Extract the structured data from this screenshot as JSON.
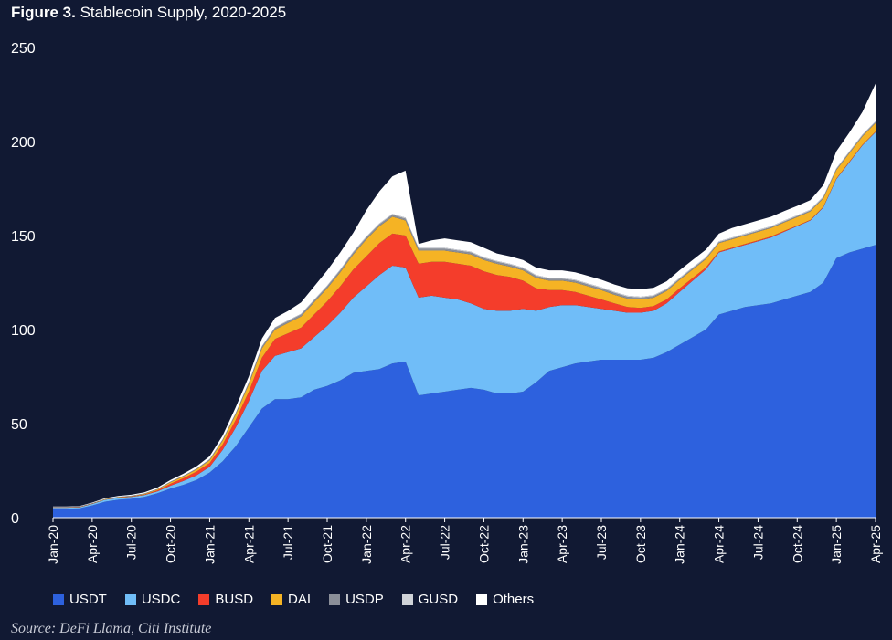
{
  "title": {
    "bold": "Figure 3.",
    "text": "Stablecoin Supply, 2020-2025"
  },
  "source": "Source: DeFi Llama, Citi Institute",
  "colors": {
    "background": "#111933",
    "USDT": "#2d61de",
    "USDC": "#70bdf8",
    "BUSD": "#f43d2b",
    "DAI": "#f5b324",
    "USDP": "#8b8f99",
    "GUSD": "#d0d3d8",
    "Others": "#ffffff"
  },
  "chart_data": {
    "type": "area",
    "stacked": true,
    "title": "Stablecoin Supply, 2020-2025",
    "ylim": [
      0,
      250
    ],
    "yticks": [
      0,
      50,
      100,
      150,
      200,
      250
    ],
    "xticks": [
      "Jan-20",
      "Apr-20",
      "Jul-20",
      "Oct-20",
      "Jan-21",
      "Apr-21",
      "Jul-21",
      "Oct-21",
      "Jan-22",
      "Apr-22",
      "Jul-22",
      "Oct-22",
      "Jan-23",
      "Apr-23",
      "Jul-23",
      "Oct-23",
      "Jan-24",
      "Apr-24",
      "Jul-24",
      "Oct-24",
      "Jan-25",
      "Apr-25"
    ],
    "legend_position": "bottom",
    "x": [
      "Jan-20",
      "Feb-20",
      "Mar-20",
      "Apr-20",
      "May-20",
      "Jun-20",
      "Jul-20",
      "Aug-20",
      "Sep-20",
      "Oct-20",
      "Nov-20",
      "Dec-20",
      "Jan-21",
      "Feb-21",
      "Mar-21",
      "Apr-21",
      "May-21",
      "Jun-21",
      "Jul-21",
      "Aug-21",
      "Sep-21",
      "Oct-21",
      "Nov-21",
      "Dec-21",
      "Jan-22",
      "Feb-22",
      "Mar-22",
      "Apr-22",
      "May-22",
      "Jun-22",
      "Jul-22",
      "Aug-22",
      "Sep-22",
      "Oct-22",
      "Nov-22",
      "Dec-22",
      "Jan-23",
      "Feb-23",
      "Mar-23",
      "Apr-23",
      "May-23",
      "Jun-23",
      "Jul-23",
      "Aug-23",
      "Sep-23",
      "Oct-23",
      "Nov-23",
      "Dec-23",
      "Jan-24",
      "Feb-24",
      "Mar-24",
      "Apr-24",
      "May-24",
      "Jun-24",
      "Jul-24",
      "Aug-24",
      "Sep-24",
      "Oct-24",
      "Nov-24",
      "Dec-24",
      "Jan-25",
      "Feb-25",
      "Mar-25",
      "Apr-25"
    ],
    "series": [
      {
        "name": "USDT",
        "values": [
          4.8,
          4.8,
          4.9,
          6.5,
          8.5,
          9.5,
          10,
          11,
          13,
          15.5,
          17.5,
          20,
          24,
          30,
          38,
          48,
          58,
          63,
          63,
          64,
          68,
          70,
          73,
          77,
          78,
          79,
          82,
          83,
          65,
          66,
          67,
          68,
          69,
          68,
          66,
          66,
          67,
          72,
          78,
          80,
          82,
          83,
          84,
          84,
          84,
          84,
          85,
          88,
          92,
          96,
          100,
          108,
          110,
          112,
          113,
          114,
          116,
          118,
          120,
          125,
          138,
          141,
          143,
          145
        ]
      },
      {
        "name": "USDC",
        "values": [
          0.5,
          0.5,
          0.6,
          0.8,
          1,
          1,
          1,
          1,
          1,
          1.5,
          2,
          2.5,
          3,
          6,
          10,
          14,
          20,
          23,
          25,
          26,
          28,
          32,
          36,
          40,
          45,
          50,
          52,
          50,
          52,
          52,
          50,
          48,
          45,
          43,
          44,
          44,
          44,
          38,
          34,
          33,
          31,
          29,
          27,
          26,
          25,
          25,
          25,
          26,
          28,
          30,
          32,
          33,
          33,
          33,
          34,
          35,
          36,
          37,
          38,
          40,
          42,
          48,
          55,
          60
        ]
      },
      {
        "name": "BUSD",
        "values": [
          0.1,
          0.1,
          0.1,
          0.1,
          0.1,
          0.2,
          0.2,
          0.3,
          0.5,
          1,
          1.5,
          2,
          2,
          3,
          4,
          5,
          7,
          9,
          10,
          11,
          12,
          13,
          14,
          15,
          16,
          17,
          17,
          17,
          18,
          18,
          19,
          19,
          20,
          20,
          19,
          18,
          15,
          12,
          9,
          8,
          7,
          6,
          5,
          4,
          3,
          2.5,
          2.5,
          2,
          2,
          1.5,
          1,
          0.5,
          0.5,
          0.5,
          0.5,
          0.5,
          0.5,
          0.3,
          0.3,
          0.3,
          0.3,
          0.3,
          0.3,
          0.3
        ]
      },
      {
        "name": "DAI",
        "values": [
          0.1,
          0.1,
          0.1,
          0.1,
          0.2,
          0.2,
          0.2,
          0.3,
          0.5,
          0.8,
          1,
          1.2,
          1.5,
          2,
          3,
          4,
          5,
          5,
          5.5,
          6,
          6.5,
          7,
          7.5,
          8,
          9,
          9,
          9,
          8,
          7,
          6,
          6,
          6,
          6,
          6,
          6,
          5.5,
          5.5,
          5.5,
          5,
          5,
          5,
          5,
          5,
          4.5,
          4.5,
          4.5,
          4.5,
          4.5,
          4.5,
          4.5,
          4.5,
          4.5,
          4.5,
          4.5,
          4.5,
          4.5,
          4.5,
          4.5,
          4.5,
          4.5,
          4.5,
          4.5,
          4.5,
          4.5
        ]
      },
      {
        "name": "USDP",
        "values": [
          0.1,
          0.1,
          0.1,
          0.1,
          0.1,
          0.1,
          0.2,
          0.2,
          0.2,
          0.3,
          0.3,
          0.3,
          0.4,
          0.5,
          0.6,
          0.8,
          0.9,
          0.9,
          1,
          1,
          1,
          1,
          1,
          1,
          1,
          1,
          1,
          1,
          1,
          1,
          1,
          1,
          1,
          1,
          1,
          1,
          1,
          1,
          1,
          1,
          1,
          1,
          1,
          1,
          1,
          1,
          0.8,
          0.7,
          0.6,
          0.6,
          0.5,
          0.5,
          0.5,
          0.5,
          0.5,
          0.5,
          0.5,
          0.5,
          0.5,
          0.5,
          0.5,
          0.5,
          0.5,
          0.5
        ]
      },
      {
        "name": "GUSD",
        "values": [
          0.1,
          0.1,
          0.1,
          0.1,
          0.1,
          0.1,
          0.1,
          0.1,
          0.1,
          0.1,
          0.1,
          0.1,
          0.2,
          0.2,
          0.2,
          0.3,
          0.3,
          0.3,
          0.4,
          0.4,
          0.4,
          0.4,
          0.5,
          0.5,
          0.5,
          0.5,
          0.5,
          0.5,
          0.5,
          0.5,
          0.5,
          0.5,
          0.5,
          0.5,
          0.5,
          0.5,
          0.5,
          0.5,
          0.5,
          0.5,
          0.5,
          0.5,
          0.5,
          0.5,
          0.5,
          0.5,
          0.5,
          0.5,
          0.5,
          0.5,
          0.5,
          0.5,
          0.5,
          0.5,
          0.5,
          0.5,
          0.5,
          0.5,
          0.5,
          0.5,
          0.5,
          0.5,
          0.5,
          0.5
        ]
      },
      {
        "name": "Others",
        "values": [
          0.2,
          0.2,
          0.2,
          0.3,
          0.4,
          0.4,
          0.5,
          0.6,
          0.7,
          0.8,
          1,
          1.2,
          1.5,
          2,
          3,
          3,
          4,
          5,
          5,
          6,
          7,
          8,
          9,
          10,
          14,
          17,
          20,
          25,
          2,
          4,
          5,
          5,
          5,
          5,
          4,
          4,
          4,
          4,
          4,
          4,
          4,
          4,
          4,
          4,
          4,
          4,
          4,
          4,
          4,
          4,
          4,
          4,
          5,
          5,
          5,
          5,
          5,
          5,
          5,
          6,
          9,
          10,
          12,
          20
        ]
      }
    ]
  }
}
